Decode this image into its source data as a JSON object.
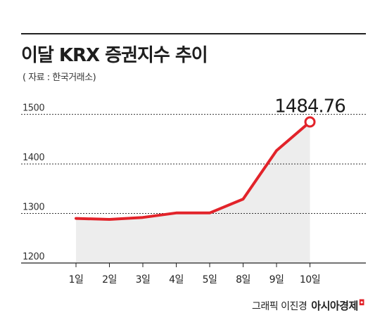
{
  "header": {
    "title": "이달 KRX 증권지수 추이",
    "source": "( 자료 : 한국거래소)"
  },
  "footer": {
    "credit": "그래픽 이진경",
    "brand": "아시아경제"
  },
  "chart_data": {
    "type": "area",
    "title": "이달 KRX 증권지수 추이",
    "categories": [
      "1일",
      "2일",
      "3일",
      "4일",
      "5일",
      "8일",
      "9일",
      "10일"
    ],
    "values": [
      1290,
      1288,
      1292,
      1301,
      1301,
      1329,
      1427,
      1484.76
    ],
    "yticks": [
      1200,
      1300,
      1400,
      1500
    ],
    "ylim": [
      1200,
      1525
    ],
    "last_label": "1484.76",
    "grid": true,
    "colors": {
      "line": "#e2232a",
      "fill": "#ededed",
      "grid": "#333333"
    }
  }
}
